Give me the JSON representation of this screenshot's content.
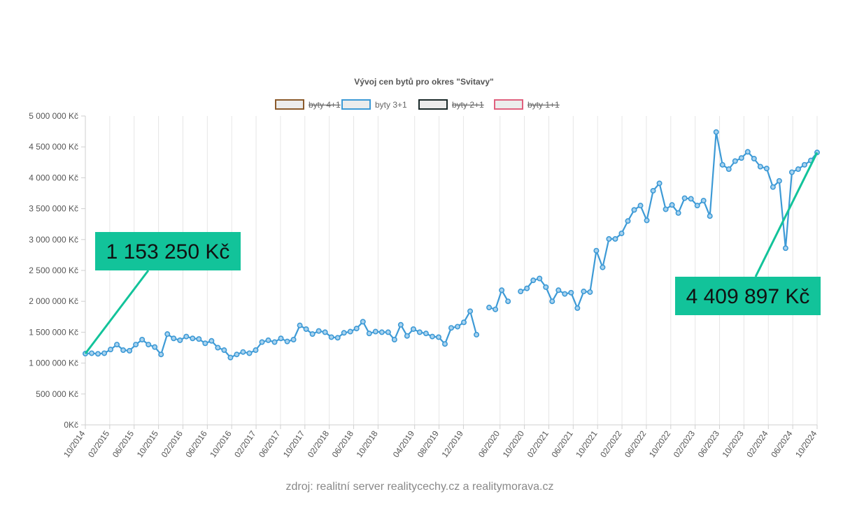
{
  "chart_data": {
    "type": "line",
    "title": "Vývoj cen bytů pro okres \"Svitavy\"",
    "legend": {
      "position": "top",
      "items": [
        {
          "name": "byty 4+1",
          "color": "#8b5a2b",
          "hidden": true
        },
        {
          "name": "byty 3+1",
          "color": "#3d9ad6",
          "hidden": false
        },
        {
          "name": "byty 2+1",
          "color": "#1b2a2a",
          "hidden": true
        },
        {
          "name": "byty 1+1",
          "color": "#e0607e",
          "hidden": true
        }
      ]
    },
    "y_axis": {
      "min": 0,
      "max": 5000000,
      "step": 500000,
      "tick_labels": [
        "0Kč",
        "500 000 Kč",
        "1 000 000 Kč",
        "1 500 000 Kč",
        "2 000 000 Kč",
        "2 500 000 Kč",
        "3 000 000 Kč",
        "3 500 000 Kč",
        "4 000 000 Kč",
        "4 500 000 Kč",
        "5 000 000 Kč"
      ]
    },
    "x_axis": {
      "start": "10/2014",
      "end": "10/2024",
      "tick_labels": [
        "10/2014",
        "02/2015",
        "06/2015",
        "10/2015",
        "02/2016",
        "06/2016",
        "10/2016",
        "02/2017",
        "06/2017",
        "10/2017",
        "02/2018",
        "06/2018",
        "10/2018",
        "04/2019",
        "08/2019",
        "12/2019",
        "06/2020",
        "10/2020",
        "02/2021",
        "06/2021",
        "10/2021",
        "02/2022",
        "06/2022",
        "10/2022",
        "02/2023",
        "06/2023",
        "10/2023",
        "02/2024",
        "06/2024",
        "10/2024"
      ]
    },
    "grid": true,
    "series": [
      {
        "name": "byty 3+1",
        "color": "#3d9ad6",
        "values": [
          1153250,
          1160000,
          1150000,
          1160000,
          1220000,
          1300000,
          1210000,
          1200000,
          1300000,
          1380000,
          1300000,
          1260000,
          1140000,
          1470000,
          1400000,
          1370000,
          1430000,
          1400000,
          1390000,
          1320000,
          1360000,
          1250000,
          1210000,
          1090000,
          1140000,
          1180000,
          1160000,
          1210000,
          1340000,
          1370000,
          1340000,
          1400000,
          1350000,
          1380000,
          1610000,
          1550000,
          1470000,
          1520000,
          1500000,
          1420000,
          1410000,
          1490000,
          1510000,
          1560000,
          1670000,
          1480000,
          1510000,
          1500000,
          1500000,
          1380000,
          1620000,
          1440000,
          1550000,
          1500000,
          1480000,
          1430000,
          1420000,
          1310000,
          1570000,
          1590000,
          1660000,
          1840000,
          1460000,
          null,
          1900000,
          1870000,
          2180000,
          2000000,
          null,
          2160000,
          2210000,
          2340000,
          2370000,
          2230000,
          2000000,
          2180000,
          2120000,
          2140000,
          1890000,
          2160000,
          2150000,
          2820000,
          2550000,
          3010000,
          3010000,
          3100000,
          3300000,
          3480000,
          3550000,
          3310000,
          3790000,
          3910000,
          3490000,
          3560000,
          3430000,
          3670000,
          3660000,
          3550000,
          3630000,
          3380000,
          4740000,
          4210000,
          4140000,
          4270000,
          4320000,
          4420000,
          4310000,
          4180000,
          4150000,
          3850000,
          3950000,
          2860000,
          4090000,
          4140000,
          4210000,
          4280000,
          4409897
        ]
      }
    ],
    "annotations": [
      {
        "text": "1 153 250 Kč",
        "point": "first"
      },
      {
        "text": "4 409 897 Kč",
        "point": "last"
      }
    ]
  },
  "source_text": "zdroj: realitní server realitycechy.cz a realitymorava.cz"
}
